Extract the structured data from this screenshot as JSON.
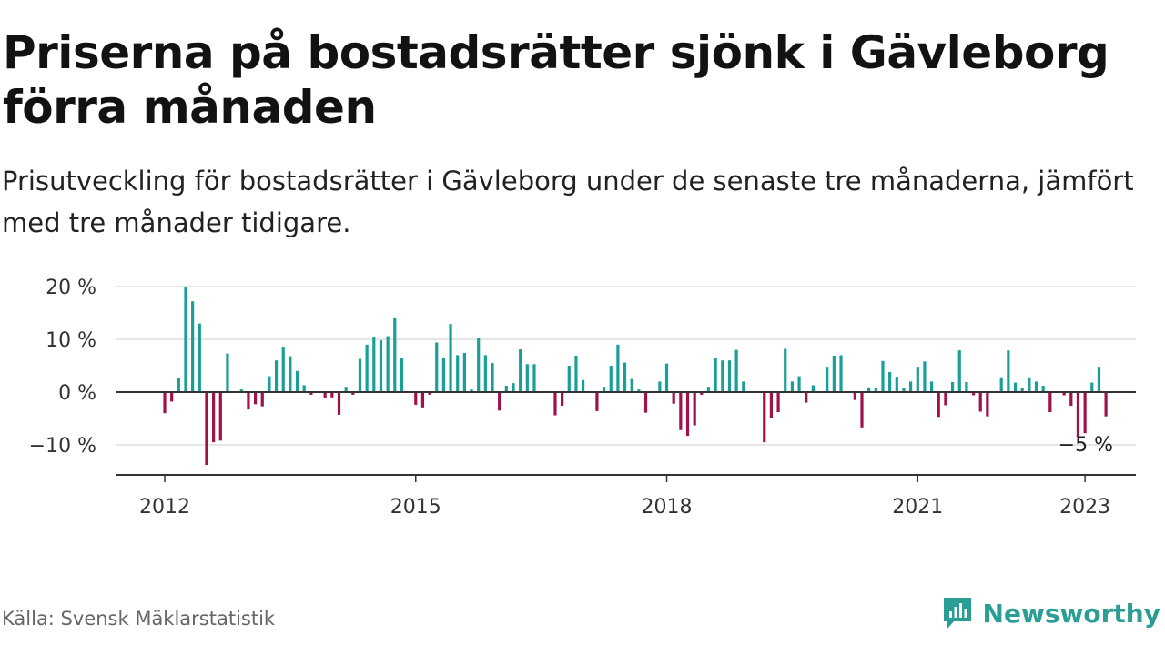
{
  "title": "Priserna på bostadsrätter sjönk i Gävleborg förra månaden",
  "subtitle": "Prisutveckling för bostadsrätter i Gävleborg under de senaste tre månaderna, jämfört med tre månader tidigare.",
  "source": "Källa: Svensk Mäklarstatistik",
  "brand": {
    "name": "Newsworthy",
    "icon": "newsworthy-logo-icon"
  },
  "colors": {
    "positive": "#1a9e99",
    "negative": "#a0104a",
    "grid": "#dddddd",
    "axis": "#333333"
  },
  "chart_data": {
    "type": "bar",
    "title": "Priserna på bostadsrätter sjönk i Gävleborg förra månaden",
    "xlabel": "",
    "ylabel": "",
    "x_start": "2012-01",
    "x_end": "2023-01",
    "ylim": [
      -15,
      22
    ],
    "yticks": [
      20,
      10,
      0,
      -10
    ],
    "ytick_labels": [
      "20 %",
      "10 %",
      "0 %",
      "−10 %"
    ],
    "xticks": [
      "2012",
      "2015",
      "2018",
      "2021",
      "2023"
    ],
    "grid": true,
    "values": [
      -4,
      -1.8,
      2.6,
      20,
      17.2,
      13,
      -13.8,
      -9.5,
      -9.2,
      7.3,
      0,
      0.5,
      -3.3,
      -2.3,
      -2.7,
      3,
      6,
      8.6,
      6.8,
      4,
      1.3,
      -0.5,
      0,
      -1.2,
      -1,
      -4.3,
      1,
      -0.5,
      6.3,
      9,
      10.5,
      9.8,
      10.6,
      14,
      6.4,
      0,
      -2.4,
      -2.9,
      -0.5,
      9.4,
      6.4,
      12.9,
      7,
      7.4,
      0.5,
      10.2,
      7,
      5.5,
      -3.5,
      1.2,
      1.7,
      8.1,
      5.3,
      5.3,
      0,
      0,
      -4.4,
      -2.6,
      5,
      6.9,
      2.3,
      0,
      -3.6,
      1,
      5,
      9,
      5.6,
      2.5,
      0.5,
      -3.9,
      0.2,
      2,
      5.4,
      -2.2,
      -7.2,
      -8.3,
      -6.3,
      -0.5,
      1,
      6.5,
      6,
      6,
      8,
      2,
      0,
      0,
      -9.5,
      -5,
      -3.8,
      8.2,
      2,
      3,
      -2,
      1.3,
      0,
      4.8,
      6.9,
      7,
      0,
      -1.5,
      -6.7,
      0.9,
      0.8,
      5.9,
      3.8,
      2.9,
      0.8,
      2,
      4.8,
      5.8,
      2,
      -4.7,
      -2.5,
      1.9,
      7.9,
      1.9,
      -0.6,
      -3.7,
      -4.6,
      0,
      2.8,
      7.9,
      1.8,
      0.8,
      2.8,
      2,
      1.2,
      -3.8,
      0,
      -0.6,
      -2.6,
      -8.5,
      -7.8,
      1.8,
      4.8,
      -4.6
    ],
    "annotations": [
      {
        "text": "−5 %"
      }
    ]
  }
}
